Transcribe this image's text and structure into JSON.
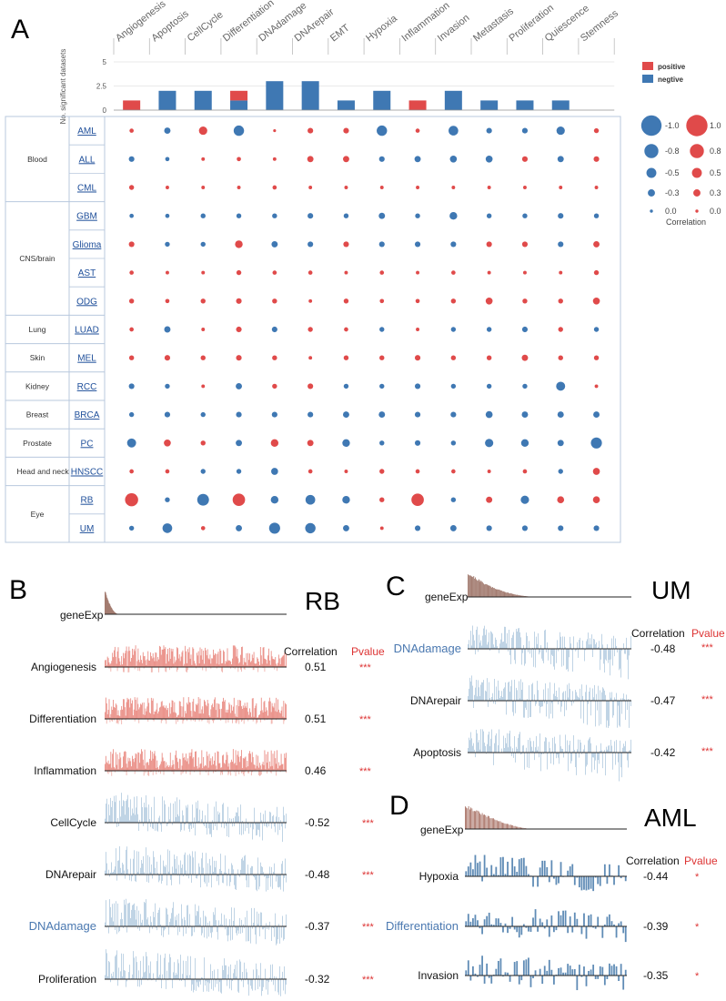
{
  "panel_letters": {
    "A": "A",
    "B": "B",
    "C": "C",
    "D": "D"
  },
  "chart_data": [
    {
      "type": "bar",
      "panel": "A",
      "title": "",
      "ylabel": "No. significant datasets",
      "ylim": [
        0,
        5
      ],
      "yticks": [
        "0",
        "2.5",
        "5"
      ],
      "categories": [
        "Angiogenesis",
        "Apoptosis",
        "CellCycle",
        "Differentiation",
        "DNAdamage",
        "DNArepair",
        "EMT",
        "Hypoxia",
        "Inflammation",
        "Invasion",
        "Metastasis",
        "Proliferation",
        "Quiescence",
        "Stemness"
      ],
      "series": [
        {
          "name": "positive",
          "color": "#e04a4a",
          "values": [
            1,
            0,
            0,
            1,
            0,
            0,
            0,
            0,
            1,
            0,
            0,
            0,
            0,
            0
          ]
        },
        {
          "name": "negtive",
          "color": "#3f78b3",
          "values": [
            0,
            2,
            2,
            1,
            3,
            3,
            1,
            2,
            0,
            2,
            1,
            1,
            1,
            0
          ]
        }
      ],
      "legend": [
        "positive",
        "negtive"
      ]
    },
    {
      "type": "scatter",
      "panel": "A",
      "subtype": "bubble-matrix",
      "legend_title": "Correlation",
      "size_legend_neg": [
        "-1.0",
        "-0.8",
        "-0.5",
        "-0.3",
        "0.0"
      ],
      "size_legend_pos": [
        "1.0",
        "0.8",
        "0.5",
        "0.3",
        "0.0"
      ],
      "groups": [
        {
          "name": "Blood",
          "datasets": [
            "AML",
            "ALL",
            "CML"
          ]
        },
        {
          "name": "CNS/brain",
          "datasets": [
            "GBM",
            "Glioma",
            "AST",
            "ODG"
          ]
        },
        {
          "name": "Lung",
          "datasets": [
            "LUAD"
          ]
        },
        {
          "name": "Skin",
          "datasets": [
            "MEL"
          ]
        },
        {
          "name": "Kidney",
          "datasets": [
            "RCC"
          ]
        },
        {
          "name": "Breast",
          "datasets": [
            "BRCA"
          ]
        },
        {
          "name": "Prostate",
          "datasets": [
            "PC"
          ]
        },
        {
          "name": "Head and neck",
          "datasets": [
            "HNSCC"
          ]
        },
        {
          "name": "Eye",
          "datasets": [
            "RB",
            "UM"
          ]
        }
      ],
      "correlation_matrix": [
        [
          0.15,
          -0.3,
          0.45,
          -0.6,
          0.05,
          0.25,
          0.25,
          -0.6,
          0.15,
          -0.55,
          -0.25,
          -0.25,
          -0.45,
          0.2
        ],
        [
          -0.25,
          -0.15,
          0.1,
          0.15,
          0.1,
          0.3,
          0.3,
          -0.25,
          -0.3,
          -0.35,
          -0.35,
          0.25,
          -0.3,
          0.25
        ],
        [
          0.2,
          0.1,
          0.1,
          0.1,
          0.15,
          0.1,
          0.1,
          0.1,
          0.1,
          0.1,
          0.1,
          0.1,
          0.1,
          0.1
        ],
        [
          -0.15,
          -0.15,
          -0.2,
          -0.2,
          -0.2,
          -0.25,
          -0.2,
          -0.3,
          -0.2,
          -0.4,
          -0.2,
          -0.2,
          -0.25,
          -0.2
        ],
        [
          0.25,
          -0.2,
          -0.2,
          0.4,
          -0.3,
          -0.25,
          0.25,
          -0.25,
          -0.25,
          -0.25,
          0.25,
          0.25,
          -0.25,
          0.3
        ],
        [
          0.15,
          0.1,
          0.1,
          0.2,
          0.15,
          0.15,
          0.1,
          0.15,
          0.1,
          0.15,
          0.1,
          0.1,
          0.1,
          0.2
        ],
        [
          0.2,
          0.15,
          0.2,
          0.25,
          0.2,
          0.1,
          0.2,
          0.15,
          0.15,
          0.2,
          0.35,
          0.2,
          0.2,
          0.35
        ],
        [
          0.15,
          -0.3,
          0.1,
          0.25,
          -0.25,
          0.2,
          0.15,
          -0.2,
          0.1,
          -0.2,
          -0.2,
          -0.25,
          0.2,
          -0.2
        ],
        [
          0.2,
          0.25,
          0.2,
          0.25,
          0.2,
          0.1,
          0.2,
          0.2,
          0.25,
          0.2,
          0.2,
          0.3,
          0.2,
          0.2
        ],
        [
          -0.25,
          -0.2,
          0.1,
          -0.3,
          0.2,
          0.25,
          -0.2,
          -0.2,
          -0.25,
          -0.2,
          -0.2,
          -0.2,
          -0.5,
          0.1
        ],
        [
          -0.2,
          -0.25,
          -0.2,
          -0.25,
          -0.25,
          -0.25,
          -0.3,
          -0.3,
          -0.25,
          -0.25,
          -0.35,
          -0.3,
          -0.3,
          -0.3
        ],
        [
          -0.5,
          0.35,
          0.2,
          -0.3,
          0.4,
          0.3,
          -0.4,
          -0.2,
          -0.25,
          -0.2,
          -0.45,
          -0.4,
          -0.3,
          -0.65
        ],
        [
          0.15,
          0.15,
          -0.2,
          -0.2,
          -0.35,
          0.15,
          0.1,
          0.2,
          0.15,
          0.15,
          0.1,
          0.15,
          -0.2,
          0.35
        ],
        [
          0.8,
          -0.2,
          -0.7,
          0.75,
          -0.4,
          -0.55,
          -0.4,
          0.2,
          0.75,
          -0.2,
          0.3,
          -0.45,
          0.35,
          0.35
        ],
        [
          -0.2,
          -0.55,
          0.15,
          -0.3,
          -0.65,
          -0.6,
          -0.3,
          0.1,
          -0.25,
          -0.3,
          -0.25,
          -0.25,
          -0.25,
          -0.25
        ]
      ]
    },
    {
      "type": "bar",
      "panel": "B",
      "subtype": "waterfall-tracks",
      "title": "RB",
      "gene_track_label": "geneExp",
      "header_correlation": "Correlation",
      "header_pvalue": "Pvalue",
      "tracks": [
        {
          "label": "Angiogenesis",
          "correlation": "0.51",
          "pvalue": "***",
          "sign": "positive"
        },
        {
          "label": "Differentiation",
          "correlation": "0.51",
          "pvalue": "***",
          "sign": "positive"
        },
        {
          "label": "Inflammation",
          "correlation": "0.46",
          "pvalue": "***",
          "sign": "positive"
        },
        {
          "label": "CellCycle",
          "correlation": "-0.52",
          "pvalue": "***",
          "sign": "negative"
        },
        {
          "label": "DNArepair",
          "correlation": "-0.48",
          "pvalue": "***",
          "sign": "negative"
        },
        {
          "label": "DNAdamage",
          "correlation": "-0.37",
          "pvalue": "***",
          "sign": "negative",
          "highlight": true
        },
        {
          "label": "Proliferation",
          "correlation": "-0.32",
          "pvalue": "***",
          "sign": "negative"
        }
      ]
    },
    {
      "type": "bar",
      "panel": "C",
      "subtype": "waterfall-tracks",
      "title": "UM",
      "gene_track_label": "geneExp",
      "header_correlation": "Correlation",
      "header_pvalue": "Pvalue",
      "tracks": [
        {
          "label": "DNAdamage",
          "correlation": "-0.48",
          "pvalue": "***",
          "sign": "negative",
          "highlight": true
        },
        {
          "label": "DNArepair",
          "correlation": "-0.47",
          "pvalue": "***",
          "sign": "negative"
        },
        {
          "label": "Apoptosis",
          "correlation": "-0.42",
          "pvalue": "***",
          "sign": "negative"
        }
      ]
    },
    {
      "type": "bar",
      "panel": "D",
      "subtype": "waterfall-tracks",
      "title": "AML",
      "gene_track_label": "geneExp",
      "header_correlation": "Correlation",
      "header_pvalue": "Pvalue",
      "tracks": [
        {
          "label": "Hypoxia",
          "correlation": "-0.44",
          "pvalue": "*",
          "sign": "negative"
        },
        {
          "label": "Differentiation",
          "correlation": "-0.39",
          "pvalue": "*",
          "sign": "negative",
          "highlight": true
        },
        {
          "label": "Invasion",
          "correlation": "-0.35",
          "pvalue": "*",
          "sign": "negative"
        }
      ]
    }
  ],
  "colors": {
    "positive": "#e04a4a",
    "negative": "#3f78b3",
    "pos_track": "#e8837a",
    "neg_track": "#a9c4dc",
    "neg_track_dark": "#4f7fae",
    "gene_track": "#a47d72",
    "gene_track_aml": "#9a5a4c",
    "grid_border": "#b8c8de"
  }
}
